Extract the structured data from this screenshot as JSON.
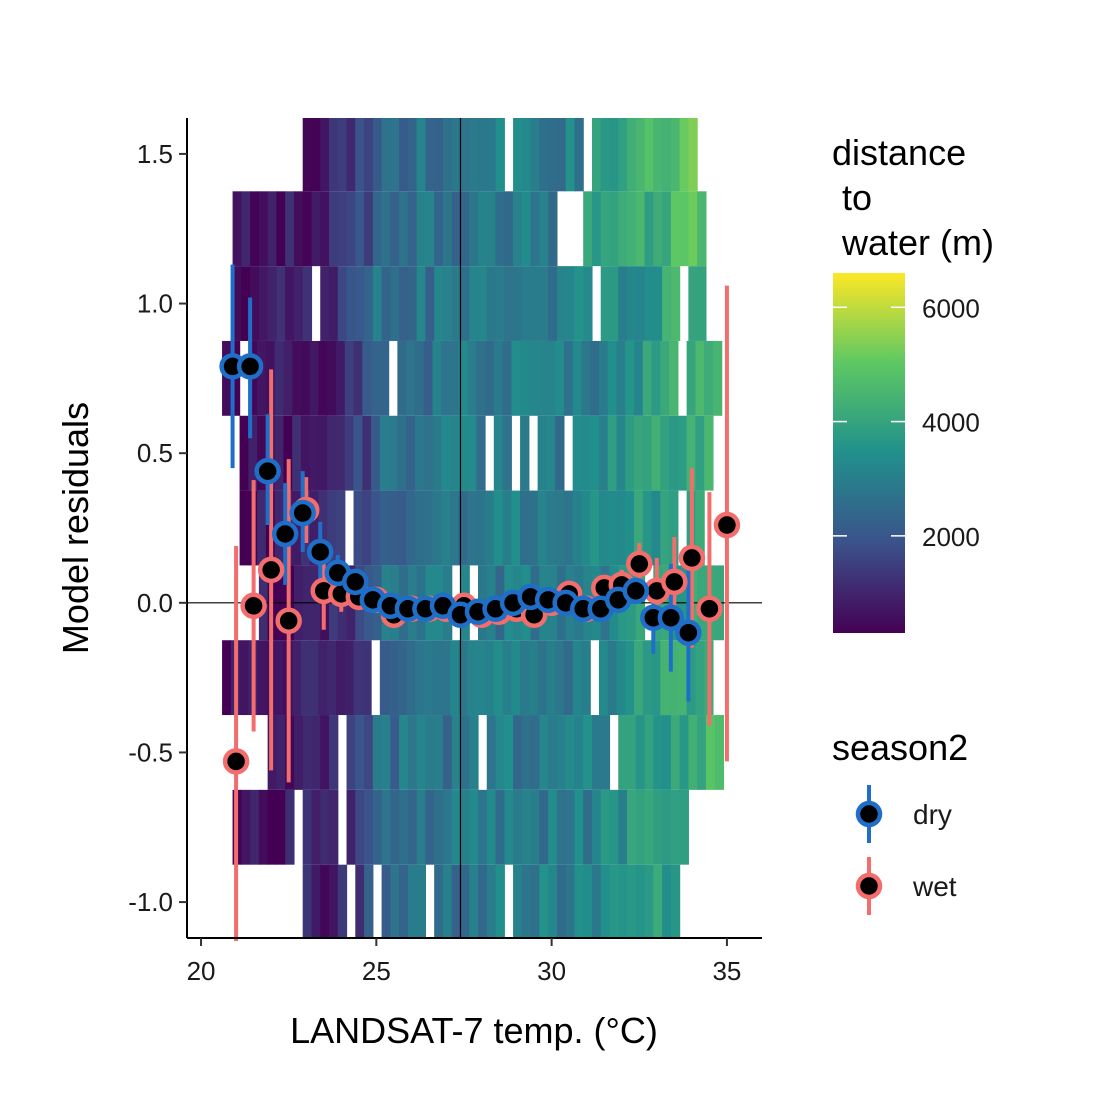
{
  "chart_data": {
    "type": "scatter",
    "xlabel": "LANDSAT-7 temp. (°C)",
    "ylabel": "Model residuals",
    "xlim": [
      19.6,
      36.0
    ],
    "ylim": [
      -1.12,
      1.62
    ],
    "x_ticks": [
      20,
      25,
      30,
      35
    ],
    "x_tick_labels": [
      "20",
      "25",
      "30",
      "35"
    ],
    "y_ticks": [
      -1.0,
      -0.5,
      0.0,
      0.5,
      1.0,
      1.5
    ],
    "y_tick_labels": [
      "-1.0",
      "-0.5",
      "0.0",
      "0.5",
      "1.0",
      "1.5"
    ],
    "reference_lines": {
      "hline_y": 0.0,
      "vline_x": 27.4
    },
    "grid": false,
    "heatmap": {
      "x_bin_width": 0.25,
      "y_bin_height": 0.25,
      "y_bin_centers": [
        -1.0,
        -0.75,
        -0.5,
        -0.25,
        0.0,
        0.25,
        0.5,
        0.75,
        1.0,
        1.25,
        1.5
      ],
      "row_x_ranges": [
        [
          22.9,
          33.6
        ],
        [
          20.9,
          33.7
        ],
        [
          21.9,
          34.8
        ],
        [
          20.6,
          34.4
        ],
        [
          21.4,
          35.0
        ],
        [
          21.1,
          34.2
        ],
        [
          21.1,
          34.5
        ],
        [
          20.6,
          34.8
        ],
        [
          20.9,
          34.4
        ],
        [
          20.9,
          34.3
        ],
        [
          22.9,
          34.0
        ]
      ],
      "color_scale": {
        "name": "distance\n to\n water (m)",
        "min": 300,
        "max": 6600,
        "ticks": [
          2000,
          4000,
          6000
        ],
        "tick_labels": [
          "2000",
          "4000",
          "6000"
        ],
        "colors": [
          "#440154",
          "#3b528b",
          "#21908c",
          "#5dc863",
          "#fde725"
        ]
      }
    },
    "series": [
      {
        "name": "dry",
        "color": "#1f6fc9",
        "points": [
          {
            "x": 20.9,
            "y": 0.79,
            "lo": 0.45,
            "hi": 1.13
          },
          {
            "x": 21.4,
            "y": 0.79,
            "lo": 0.55,
            "hi": 1.02
          },
          {
            "x": 21.9,
            "y": 0.44,
            "lo": 0.26,
            "hi": 0.63
          },
          {
            "x": 22.4,
            "y": 0.23,
            "lo": 0.06,
            "hi": 0.4
          },
          {
            "x": 22.9,
            "y": 0.3,
            "lo": 0.17,
            "hi": 0.44
          },
          {
            "x": 23.4,
            "y": 0.17,
            "lo": 0.07,
            "hi": 0.27
          },
          {
            "x": 23.9,
            "y": 0.1,
            "lo": 0.04,
            "hi": 0.16
          },
          {
            "x": 24.4,
            "y": 0.07,
            "lo": 0.03,
            "hi": 0.11
          },
          {
            "x": 24.9,
            "y": 0.01,
            "lo": -0.02,
            "hi": 0.04
          },
          {
            "x": 25.4,
            "y": -0.01,
            "lo": -0.03,
            "hi": 0.01
          },
          {
            "x": 25.9,
            "y": -0.02,
            "lo": -0.04,
            "hi": 0.0
          },
          {
            "x": 26.4,
            "y": -0.02,
            "lo": -0.04,
            "hi": 0.0
          },
          {
            "x": 26.9,
            "y": -0.01,
            "lo": -0.03,
            "hi": 0.01
          },
          {
            "x": 27.4,
            "y": -0.04,
            "lo": -0.06,
            "hi": -0.02
          },
          {
            "x": 27.9,
            "y": -0.03,
            "lo": -0.05,
            "hi": -0.01
          },
          {
            "x": 28.4,
            "y": -0.02,
            "lo": -0.04,
            "hi": 0.0
          },
          {
            "x": 28.9,
            "y": 0.0,
            "lo": -0.02,
            "hi": 0.02
          },
          {
            "x": 29.4,
            "y": 0.02,
            "lo": 0.0,
            "hi": 0.04
          },
          {
            "x": 29.9,
            "y": 0.01,
            "lo": -0.01,
            "hi": 0.03
          },
          {
            "x": 30.4,
            "y": 0.0,
            "lo": -0.02,
            "hi": 0.02
          },
          {
            "x": 30.9,
            "y": -0.02,
            "lo": -0.05,
            "hi": 0.01
          },
          {
            "x": 31.4,
            "y": -0.02,
            "lo": -0.05,
            "hi": 0.01
          },
          {
            "x": 31.9,
            "y": 0.01,
            "lo": -0.02,
            "hi": 0.04
          },
          {
            "x": 32.4,
            "y": 0.04,
            "lo": 0.0,
            "hi": 0.08
          },
          {
            "x": 32.9,
            "y": -0.05,
            "lo": -0.17,
            "hi": 0.07
          },
          {
            "x": 33.4,
            "y": -0.05,
            "lo": -0.23,
            "hi": 0.13
          },
          {
            "x": 33.9,
            "y": -0.1,
            "lo": -0.33,
            "hi": 0.12
          }
        ]
      },
      {
        "name": "wet",
        "color": "#f46d6d",
        "points": [
          {
            "x": 21.0,
            "y": -0.53,
            "lo": -1.13,
            "hi": 0.19
          },
          {
            "x": 21.5,
            "y": -0.01,
            "lo": -0.43,
            "hi": 0.41
          },
          {
            "x": 22.0,
            "y": 0.11,
            "lo": -0.56,
            "hi": 0.78
          },
          {
            "x": 22.5,
            "y": -0.06,
            "lo": -0.6,
            "hi": 0.48
          },
          {
            "x": 23.0,
            "y": 0.31,
            "lo": 0.2,
            "hi": 0.42
          },
          {
            "x": 23.5,
            "y": 0.04,
            "lo": -0.09,
            "hi": 0.17
          },
          {
            "x": 24.0,
            "y": 0.03,
            "lo": -0.03,
            "hi": 0.09
          },
          {
            "x": 24.5,
            "y": 0.02,
            "lo": -0.02,
            "hi": 0.06
          },
          {
            "x": 25.0,
            "y": 0.01,
            "lo": -0.02,
            "hi": 0.04
          },
          {
            "x": 25.5,
            "y": -0.04,
            "lo": -0.06,
            "hi": -0.02
          },
          {
            "x": 26.0,
            "y": -0.02,
            "lo": -0.04,
            "hi": 0.0
          },
          {
            "x": 26.5,
            "y": -0.02,
            "lo": -0.04,
            "hi": 0.0
          },
          {
            "x": 27.0,
            "y": -0.02,
            "lo": -0.04,
            "hi": 0.0
          },
          {
            "x": 27.5,
            "y": -0.01,
            "lo": -0.03,
            "hi": 0.01
          },
          {
            "x": 28.0,
            "y": -0.04,
            "lo": -0.06,
            "hi": -0.02
          },
          {
            "x": 28.5,
            "y": -0.03,
            "lo": -0.05,
            "hi": -0.01
          },
          {
            "x": 29.0,
            "y": -0.02,
            "lo": -0.04,
            "hi": 0.0
          },
          {
            "x": 29.5,
            "y": -0.04,
            "lo": -0.07,
            "hi": -0.01
          },
          {
            "x": 30.0,
            "y": 0.0,
            "lo": -0.02,
            "hi": 0.02
          },
          {
            "x": 30.5,
            "y": 0.03,
            "lo": 0.0,
            "hi": 0.06
          },
          {
            "x": 31.0,
            "y": -0.02,
            "lo": -0.05,
            "hi": 0.01
          },
          {
            "x": 31.5,
            "y": 0.05,
            "lo": 0.01,
            "hi": 0.09
          },
          {
            "x": 32.0,
            "y": 0.06,
            "lo": 0.01,
            "hi": 0.11
          },
          {
            "x": 32.5,
            "y": 0.13,
            "lo": 0.06,
            "hi": 0.2
          },
          {
            "x": 33.0,
            "y": 0.04,
            "lo": -0.07,
            "hi": 0.15
          },
          {
            "x": 33.5,
            "y": 0.07,
            "lo": -0.08,
            "hi": 0.22
          },
          {
            "x": 34.0,
            "y": 0.15,
            "lo": -0.15,
            "hi": 0.45
          },
          {
            "x": 34.5,
            "y": -0.02,
            "lo": -0.41,
            "hi": 0.37
          },
          {
            "x": 35.0,
            "y": 0.26,
            "lo": -0.53,
            "hi": 1.06
          }
        ]
      }
    ],
    "legends": {
      "color": {
        "title": "distance\n to\n water (m)",
        "position": "top-right"
      },
      "season": {
        "title": "season2",
        "position": "right",
        "entries": [
          "dry",
          "wet"
        ]
      }
    }
  }
}
